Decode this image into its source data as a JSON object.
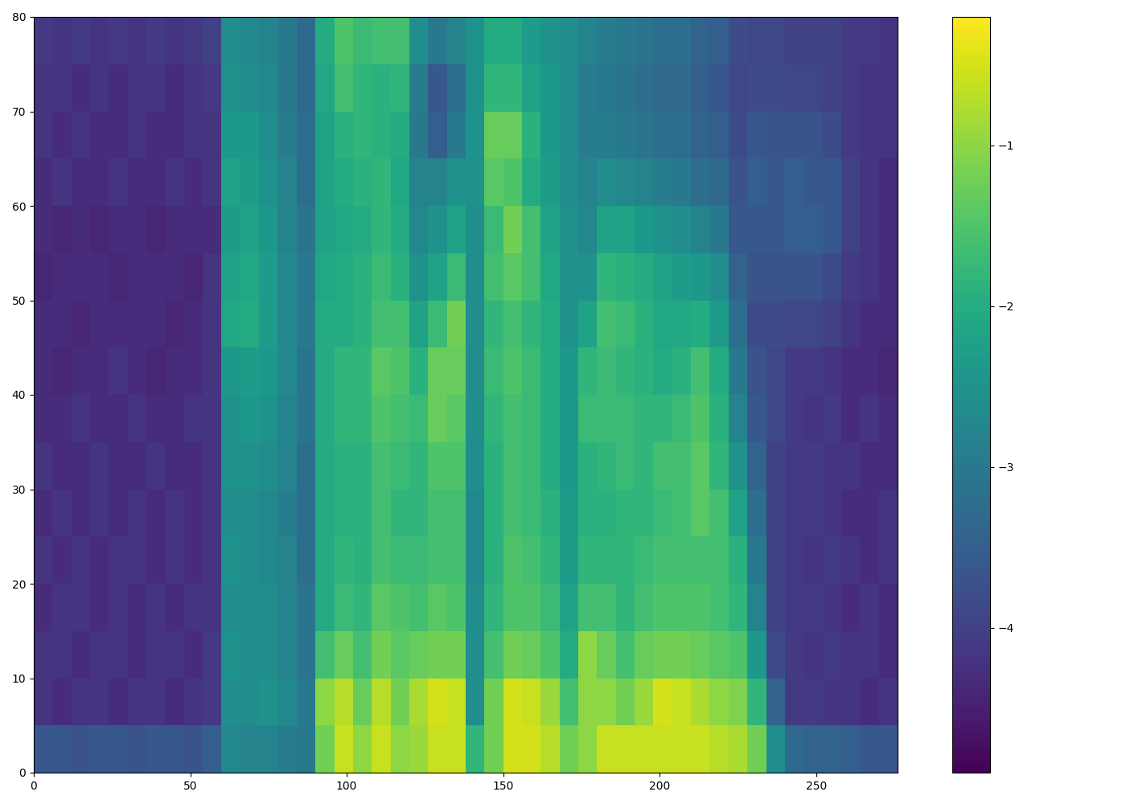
{
  "chart_data": {
    "type": "heatmap",
    "xlim": [
      0,
      276
    ],
    "ylim": [
      0,
      80
    ],
    "xticks": [
      0,
      50,
      100,
      150,
      200,
      250
    ],
    "yticks": [
      0,
      10,
      20,
      30,
      40,
      50,
      60,
      70,
      80
    ],
    "cells": [
      [
        -3.6,
        -4.2,
        -4.2,
        -4.3,
        -4.2,
        -4.3,
        -4.2,
        -4.3,
        -4.3,
        -4.3,
        -4.4,
        -4.3,
        -4.3,
        -4.2,
        -4.2,
        -4.1
      ],
      [
        -3.6,
        -4.3,
        -4.2,
        -4.2,
        -4.3,
        -4.2,
        -4.3,
        -4.3,
        -4.4,
        -4.3,
        -4.3,
        -4.4,
        -4.2,
        -4.3,
        -4.2,
        -4.2
      ],
      [
        -3.7,
        -4.2,
        -4.3,
        -4.2,
        -4.2,
        -4.3,
        -4.3,
        -4.2,
        -4.3,
        -4.4,
        -4.3,
        -4.3,
        -4.3,
        -4.2,
        -4.3,
        -4.1
      ],
      [
        -3.6,
        -4.2,
        -4.2,
        -4.3,
        -4.3,
        -4.2,
        -4.2,
        -4.3,
        -4.3,
        -4.3,
        -4.3,
        -4.4,
        -4.3,
        -4.3,
        -4.2,
        -4.2
      ],
      [
        -3.6,
        -4.3,
        -4.2,
        -4.2,
        -4.2,
        -4.3,
        -4.3,
        -4.3,
        -4.2,
        -4.3,
        -4.4,
        -4.3,
        -4.2,
        -4.3,
        -4.3,
        -4.1
      ],
      [
        -3.7,
        -4.2,
        -4.3,
        -4.3,
        -4.2,
        -4.2,
        -4.3,
        -4.2,
        -4.3,
        -4.3,
        -4.3,
        -4.3,
        -4.3,
        -4.2,
        -4.2,
        -4.2
      ],
      [
        -3.6,
        -4.2,
        -4.2,
        -4.2,
        -4.3,
        -4.3,
        -4.2,
        -4.3,
        -4.4,
        -4.3,
        -4.3,
        -4.4,
        -4.3,
        -4.3,
        -4.2,
        -4.1
      ],
      [
        -3.6,
        -4.3,
        -4.2,
        -4.3,
        -4.2,
        -4.2,
        -4.3,
        -4.3,
        -4.3,
        -4.4,
        -4.3,
        -4.3,
        -4.2,
        -4.3,
        -4.3,
        -4.2
      ],
      [
        -3.7,
        -4.2,
        -4.3,
        -4.2,
        -4.3,
        -4.3,
        -4.3,
        -4.2,
        -4.3,
        -4.3,
        -4.4,
        -4.3,
        -4.3,
        -4.2,
        -4.2,
        -4.1
      ],
      [
        -3.5,
        -4.1,
        -4.1,
        -4.2,
        -4.2,
        -4.2,
        -4.2,
        -4.2,
        -4.2,
        -4.2,
        -4.2,
        -4.3,
        -4.2,
        -4.2,
        -4.1,
        -4.0
      ],
      [
        -2.7,
        -2.6,
        -2.5,
        -2.6,
        -2.5,
        -2.6,
        -2.5,
        -2.5,
        -2.4,
        -2.1,
        -2.2,
        -2.3,
        -2.2,
        -2.4,
        -2.5,
        -2.6
      ],
      [
        -2.8,
        -2.6,
        -2.6,
        -2.6,
        -2.6,
        -2.6,
        -2.5,
        -2.4,
        -2.3,
        -2.0,
        -2.1,
        -2.2,
        -2.3,
        -2.4,
        -2.6,
        -2.7
      ],
      [
        -2.8,
        -2.5,
        -2.6,
        -2.6,
        -2.7,
        -2.7,
        -2.6,
        -2.5,
        -2.4,
        -2.3,
        -2.3,
        -2.4,
        -2.5,
        -2.6,
        -2.7,
        -2.8
      ],
      [
        -2.9,
        -2.7,
        -2.8,
        -2.8,
        -2.8,
        -2.9,
        -2.8,
        -2.8,
        -2.7,
        -2.7,
        -2.7,
        -2.8,
        -2.8,
        -2.9,
        -3.0,
        -3.0
      ],
      [
        -3.0,
        -3.0,
        -3.1,
        -3.1,
        -3.2,
        -3.2,
        -3.2,
        -3.1,
        -3.1,
        -3.0,
        -3.0,
        -3.1,
        -3.2,
        -3.2,
        -3.3,
        -3.3
      ],
      [
        -1.2,
        -1.0,
        -1.6,
        -2.0,
        -2.0,
        -2.0,
        -2.0,
        -2.0,
        -2.0,
        -2.0,
        -2.1,
        -2.2,
        -2.2,
        -2.2,
        -2.1,
        -2.0
      ],
      [
        -0.6,
        -0.7,
        -1.3,
        -1.7,
        -1.8,
        -1.9,
        -1.9,
        -1.8,
        -1.8,
        -2.0,
        -2.0,
        -2.1,
        -2.0,
        -1.9,
        -1.6,
        -1.5
      ],
      [
        -1.0,
        -1.3,
        -1.6,
        -1.8,
        -1.9,
        -1.9,
        -1.9,
        -1.8,
        -1.8,
        -1.9,
        -1.9,
        -2.0,
        -1.9,
        -1.8,
        -1.8,
        -1.7
      ],
      [
        -0.6,
        -0.7,
        -1.2,
        -1.4,
        -1.6,
        -1.6,
        -1.6,
        -1.5,
        -1.4,
        -1.6,
        -1.7,
        -1.8,
        -1.8,
        -1.9,
        -1.9,
        -1.6
      ],
      [
        -1.0,
        -1.2,
        -1.4,
        -1.5,
        -1.7,
        -1.8,
        -1.7,
        -1.6,
        -1.5,
        -1.6,
        -1.9,
        -2.0,
        -2.1,
        -2.0,
        -1.8,
        -1.6
      ],
      [
        -0.9,
        -0.8,
        -1.3,
        -1.6,
        -1.7,
        -1.8,
        -1.8,
        -1.7,
        -1.9,
        -2.2,
        -2.5,
        -2.7,
        -2.8,
        -3.0,
        -2.9,
        -2.6
      ],
      [
        -0.6,
        -0.5,
        -1.2,
        -1.4,
        -1.6,
        -1.6,
        -1.5,
        -1.3,
        -1.3,
        -1.7,
        -2.2,
        -2.5,
        -2.8,
        -3.5,
        -3.6,
        -3.0
      ],
      [
        -0.6,
        -0.6,
        -1.2,
        -1.5,
        -1.6,
        -1.6,
        -1.5,
        -1.4,
        -1.3,
        -1.2,
        -1.7,
        -2.2,
        -2.5,
        -3.0,
        -3.2,
        -2.8
      ],
      [
        -1.8,
        -2.6,
        -2.6,
        -2.6,
        -2.7,
        -2.7,
        -2.6,
        -2.6,
        -2.6,
        -2.6,
        -2.6,
        -2.6,
        -2.5,
        -2.5,
        -2.5,
        -2.5
      ],
      [
        -1.2,
        -1.2,
        -1.6,
        -1.8,
        -1.9,
        -1.9,
        -1.9,
        -1.8,
        -1.7,
        -1.8,
        -1.6,
        -1.7,
        -1.4,
        -1.3,
        -1.8,
        -2.0
      ],
      [
        -0.5,
        -0.5,
        -1.2,
        -1.5,
        -1.5,
        -1.6,
        -1.6,
        -1.6,
        -1.5,
        -1.6,
        -1.4,
        -1.2,
        -1.5,
        -1.3,
        -1.8,
        -2.0
      ],
      [
        -0.5,
        -0.6,
        -1.3,
        -1.5,
        -1.6,
        -1.7,
        -1.7,
        -1.7,
        -1.7,
        -1.8,
        -1.6,
        -1.6,
        -2.0,
        -1.9,
        -2.2,
        -2.3
      ],
      [
        -0.7,
        -0.9,
        -1.5,
        -1.7,
        -1.8,
        -1.9,
        -2.0,
        -2.0,
        -2.0,
        -2.0,
        -2.1,
        -2.2,
        -2.3,
        -2.4,
        -2.4,
        -2.5
      ],
      [
        -1.2,
        -1.6,
        -2.0,
        -2.2,
        -2.3,
        -2.3,
        -2.4,
        -2.4,
        -2.4,
        -2.5,
        -2.5,
        -2.5,
        -2.6,
        -2.6,
        -2.6,
        -2.6
      ],
      [
        -1.0,
        -1.0,
        -1.0,
        -1.6,
        -1.8,
        -1.9,
        -1.9,
        -1.7,
        -1.8,
        -2.2,
        -2.5,
        -2.7,
        -2.8,
        -2.9,
        -2.9,
        -2.8
      ],
      [
        -0.6,
        -1.0,
        -1.3,
        -1.6,
        -1.8,
        -1.9,
        -1.8,
        -1.7,
        -1.7,
        -1.6,
        -1.8,
        -2.2,
        -2.6,
        -2.9,
        -3.0,
        -2.9
      ],
      [
        -0.6,
        -1.2,
        -1.6,
        -1.8,
        -1.8,
        -1.8,
        -1.7,
        -1.7,
        -1.8,
        -1.7,
        -1.9,
        -2.2,
        -2.7,
        -3.0,
        -3.1,
        -3.0
      ],
      [
        -0.6,
        -0.9,
        -1.3,
        -1.6,
        -1.7,
        -1.8,
        -1.8,
        -1.8,
        -1.9,
        -1.9,
        -2.0,
        -2.4,
        -2.8,
        -3.1,
        -3.2,
        -3.1
      ],
      [
        -0.6,
        -0.5,
        -1.2,
        -1.5,
        -1.6,
        -1.7,
        -1.6,
        -1.8,
        -2.0,
        -2.1,
        -2.2,
        -2.5,
        -2.9,
        -3.2,
        -3.3,
        -3.2
      ],
      [
        -0.6,
        -0.6,
        -1.2,
        -1.5,
        -1.6,
        -1.6,
        -1.6,
        -1.7,
        -1.9,
        -2.1,
        -2.3,
        -2.6,
        -3.0,
        -3.2,
        -3.3,
        -3.2
      ],
      [
        -0.6,
        -0.8,
        -1.3,
        -1.5,
        -1.6,
        -1.4,
        -1.4,
        -1.5,
        -1.6,
        -2.0,
        -2.4,
        -2.8,
        -3.2,
        -3.4,
        -3.5,
        -3.4
      ],
      [
        -0.7,
        -1.0,
        -1.4,
        -1.6,
        -1.6,
        -1.6,
        -1.8,
        -1.9,
        -2.0,
        -2.3,
        -2.6,
        -3.0,
        -3.3,
        -3.5,
        -3.6,
        -3.5
      ],
      [
        -0.8,
        -1.1,
        -1.5,
        -1.8,
        -1.9,
        -2.2,
        -2.5,
        -2.8,
        -3.0,
        -3.2,
        -3.4,
        -3.6,
        -3.7,
        -3.8,
        -3.9,
        -3.8
      ],
      [
        -1.2,
        -1.8,
        -2.4,
        -2.8,
        -3.0,
        -3.2,
        -3.4,
        -3.6,
        -3.7,
        -3.8,
        -3.7,
        -3.6,
        -3.5,
        -3.6,
        -3.8,
        -3.9
      ],
      [
        -2.6,
        -3.4,
        -3.8,
        -4.0,
        -4.0,
        -4.0,
        -4.0,
        -3.9,
        -3.9,
        -3.8,
        -3.7,
        -3.6,
        -3.6,
        -3.7,
        -3.8,
        -3.9
      ],
      [
        -3.3,
        -4.1,
        -4.1,
        -4.1,
        -4.1,
        -4.1,
        -4.1,
        -4.1,
        -4.1,
        -3.9,
        -3.7,
        -3.5,
        -3.5,
        -3.7,
        -3.9,
        -4.0
      ],
      [
        -3.4,
        -4.1,
        -4.2,
        -4.1,
        -4.2,
        -4.1,
        -4.1,
        -4.2,
        -4.1,
        -3.9,
        -3.7,
        -3.5,
        -3.6,
        -3.7,
        -3.9,
        -4.0
      ],
      [
        -3.4,
        -4.2,
        -4.1,
        -4.2,
        -4.1,
        -4.2,
        -4.2,
        -4.1,
        -4.2,
        -4.0,
        -3.8,
        -3.6,
        -3.6,
        -3.8,
        -4.0,
        -4.0
      ],
      [
        -3.5,
        -4.2,
        -4.2,
        -4.3,
        -4.2,
        -4.3,
        -4.2,
        -4.3,
        -4.3,
        -4.2,
        -4.1,
        -4.0,
        -4.0,
        -4.1,
        -4.1,
        -4.1
      ],
      [
        -3.6,
        -4.3,
        -4.2,
        -4.2,
        -4.3,
        -4.3,
        -4.3,
        -4.2,
        -4.3,
        -4.3,
        -4.2,
        -4.2,
        -4.2,
        -4.2,
        -4.2,
        -4.1
      ],
      [
        -3.6,
        -4.2,
        -4.3,
        -4.3,
        -4.2,
        -4.2,
        -4.3,
        -4.3,
        -4.4,
        -4.3,
        -4.3,
        -4.3,
        -4.3,
        -4.2,
        -4.2,
        -4.2
      ]
    ],
    "colorbar": {
      "range": [
        -4.9,
        -0.2
      ],
      "ticks": [
        {
          "value": -4,
          "label": "−4"
        },
        {
          "value": -3,
          "label": "−3"
        },
        {
          "value": -2,
          "label": "−2"
        },
        {
          "value": -1,
          "label": "−1"
        }
      ]
    }
  }
}
